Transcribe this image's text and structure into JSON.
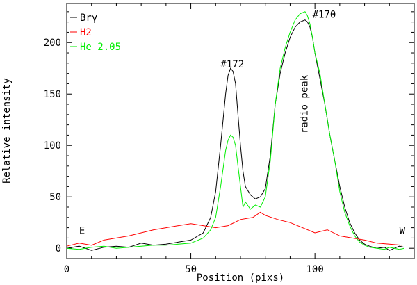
{
  "chart_data": {
    "type": "line",
    "xlabel": "Position (pixs)",
    "ylabel": "Relative intensity",
    "xlim": [
      0,
      140
    ],
    "ylim": [
      -10,
      238
    ],
    "x_ticks": [
      0,
      50,
      100
    ],
    "y_ticks": [
      0,
      50,
      100,
      150,
      200
    ],
    "grid": false,
    "legend_placement": "top-left",
    "annotations": [
      {
        "text": "#172",
        "x": 62,
        "y": 176
      },
      {
        "text": "#170",
        "x": 99,
        "y": 224
      },
      {
        "text": "radio peak",
        "x": 97,
        "y": 140,
        "rotated": true
      },
      {
        "text": "E",
        "x": 5,
        "y": 14
      },
      {
        "text": "W",
        "x": 134,
        "y": 14
      }
    ],
    "series": [
      {
        "name": "Brγ",
        "color": "#000000",
        "x": [
          0,
          5,
          10,
          15,
          20,
          25,
          30,
          35,
          40,
          45,
          50,
          55,
          58,
          60,
          62,
          64,
          65,
          66,
          67,
          68,
          69,
          70,
          71,
          72,
          74,
          76,
          78,
          80,
          82,
          84,
          86,
          88,
          90,
          92,
          94,
          96,
          97,
          98,
          99,
          100,
          102,
          104,
          106,
          108,
          110,
          112,
          114,
          116,
          118,
          120,
          122,
          125,
          128,
          130,
          132,
          134,
          136
        ],
        "y": [
          0,
          2,
          -2,
          1,
          2,
          1,
          5,
          3,
          4,
          6,
          8,
          15,
          30,
          55,
          100,
          150,
          168,
          175,
          172,
          160,
          130,
          100,
          75,
          60,
          52,
          48,
          50,
          58,
          90,
          140,
          170,
          190,
          205,
          215,
          220,
          222,
          220,
          215,
          205,
          190,
          165,
          140,
          110,
          85,
          60,
          40,
          25,
          15,
          8,
          4,
          2,
          0,
          1,
          -2,
          0,
          2,
          1
        ]
      },
      {
        "name": "H2",
        "color": "#ff0000",
        "x": [
          0,
          5,
          10,
          15,
          20,
          25,
          30,
          35,
          40,
          45,
          50,
          55,
          60,
          65,
          70,
          75,
          78,
          80,
          85,
          90,
          95,
          100,
          105,
          110,
          115,
          120,
          125,
          130,
          135
        ],
        "y": [
          2,
          5,
          3,
          8,
          10,
          12,
          15,
          18,
          20,
          22,
          24,
          22,
          20,
          22,
          28,
          30,
          35,
          32,
          28,
          25,
          20,
          15,
          18,
          12,
          10,
          8,
          5,
          4,
          3
        ]
      },
      {
        "name": "He 2.05",
        "color": "#00ee00",
        "x": [
          0,
          5,
          10,
          15,
          20,
          25,
          30,
          35,
          40,
          45,
          50,
          55,
          58,
          60,
          62,
          64,
          65,
          66,
          67,
          68,
          69,
          70,
          71,
          72,
          74,
          76,
          78,
          80,
          82,
          84,
          86,
          88,
          90,
          92,
          94,
          96,
          97,
          98,
          99,
          100,
          102,
          104,
          106,
          108,
          110,
          112,
          114,
          116,
          118,
          120,
          122,
          125,
          128,
          130,
          132,
          134,
          136
        ],
        "y": [
          0,
          -1,
          1,
          2,
          0,
          1,
          2,
          3,
          3,
          4,
          5,
          10,
          18,
          30,
          60,
          95,
          105,
          110,
          108,
          100,
          80,
          60,
          40,
          45,
          38,
          42,
          40,
          50,
          85,
          140,
          175,
          195,
          210,
          222,
          228,
          230,
          226,
          218,
          205,
          190,
          170,
          140,
          110,
          85,
          55,
          35,
          22,
          12,
          6,
          3,
          1,
          0,
          -1,
          1,
          0,
          -1,
          0
        ]
      }
    ]
  }
}
